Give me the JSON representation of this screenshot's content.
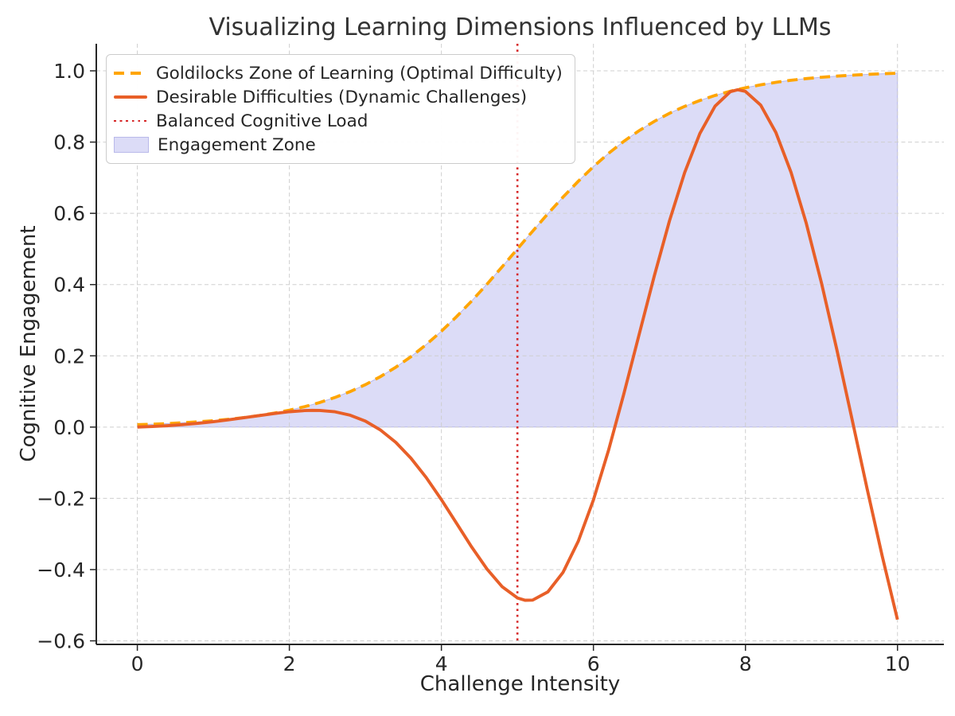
{
  "title": "Visualizing Learning Dimensions Influenced by LLMs",
  "legend": {
    "items": [
      {
        "label": "Goldilocks Zone of Learning (Optimal Difficulty)",
        "type": "dashed",
        "color": "#FFA500"
      },
      {
        "label": "Desirable Difficulties (Dynamic Challenges)",
        "type": "solid",
        "color": "#E85F28"
      },
      {
        "label": "Balanced Cognitive Load",
        "type": "dotted",
        "color": "#D62728"
      },
      {
        "label": "Engagement Zone",
        "type": "patch",
        "color": "#DCDCF7",
        "edge": "#B9B9EA"
      }
    ]
  },
  "colors": {
    "background": "#FFFFFF",
    "grid": "#CFCFCF",
    "spine": "#262626",
    "tick_text": "#262626",
    "title_text": "#333333"
  },
  "chart_data": {
    "type": "line",
    "title": "Visualizing Learning Dimensions Influenced by LLMs",
    "xlabel": "Challenge Intensity",
    "ylabel": "Cognitive Engagement",
    "xlim": [
      -0.54,
      10.61
    ],
    "ylim": [
      -0.61,
      1.076
    ],
    "xticks": [
      0,
      2,
      4,
      6,
      8,
      10
    ],
    "yticks": [
      -0.6,
      -0.4,
      -0.2,
      0.0,
      0.2,
      0.4,
      0.6,
      0.8,
      1.0
    ],
    "grid": true,
    "legend_position": "upper left",
    "x": [
      0,
      0.2,
      0.4,
      0.6,
      0.8,
      1.0,
      1.2,
      1.4,
      1.6,
      1.8,
      2.0,
      2.2,
      2.3,
      2.4,
      2.6,
      2.8,
      3.0,
      3.2,
      3.4,
      3.6,
      3.8,
      4.0,
      4.2,
      4.4,
      4.6,
      4.8,
      5.0,
      5.1,
      5.2,
      5.4,
      5.6,
      5.8,
      6.0,
      6.2,
      6.4,
      6.6,
      6.8,
      7.0,
      7.2,
      7.4,
      7.6,
      7.8,
      7.9,
      8.0,
      8.2,
      8.4,
      8.6,
      8.8,
      9.0,
      9.2,
      9.4,
      9.6,
      9.8,
      10.0
    ],
    "series": [
      {
        "name": "Goldilocks Zone of Learning (Optimal Difficulty)",
        "style": "dashed",
        "color": "#FFA500",
        "values": [
          0.0067,
          0.0082,
          0.0099,
          0.0121,
          0.0148,
          0.018,
          0.0219,
          0.0266,
          0.0323,
          0.0392,
          0.0474,
          0.0573,
          0.063,
          0.0691,
          0.0832,
          0.0997,
          0.1192,
          0.1419,
          0.168,
          0.1978,
          0.2315,
          0.2689,
          0.31,
          0.3543,
          0.4013,
          0.4502,
          0.5,
          0.525,
          0.5498,
          0.5987,
          0.6457,
          0.69,
          0.7311,
          0.7685,
          0.8022,
          0.832,
          0.8581,
          0.8808,
          0.9002,
          0.9168,
          0.9309,
          0.9427,
          0.9479,
          0.9526,
          0.9608,
          0.9677,
          0.9734,
          0.9781,
          0.982,
          0.9852,
          0.9879,
          0.99,
          0.9918,
          0.9933
        ]
      },
      {
        "name": "Desirable Difficulties (Dynamic Challenges)",
        "style": "solid",
        "color": "#E85F28",
        "values": [
          0.0,
          0.0016,
          0.0039,
          0.0069,
          0.0106,
          0.0151,
          0.0204,
          0.0262,
          0.0323,
          0.0381,
          0.0431,
          0.0463,
          0.047,
          0.0467,
          0.0429,
          0.0334,
          0.0168,
          -0.0083,
          -0.0429,
          -0.0875,
          -0.1416,
          -0.2035,
          -0.2702,
          -0.3372,
          -0.3988,
          -0.4484,
          -0.4795,
          -0.486,
          -0.4857,
          -0.4626,
          -0.4076,
          -0.3206,
          -0.2043,
          -0.0639,
          0.0935,
          0.2592,
          0.424,
          0.5787,
          0.7145,
          0.824,
          0.901,
          0.9413,
          0.9469,
          0.9423,
          0.9039,
          0.827,
          0.7149,
          0.5721,
          0.4047,
          0.2196,
          0.0245,
          -0.1726,
          -0.3625,
          -0.5404
        ]
      }
    ],
    "vline": {
      "name": "Balanced Cognitive Load",
      "x": 5,
      "style": "dotted",
      "color": "#D62728"
    },
    "fill_between": {
      "name": "Engagement Zone",
      "upper": "Goldilocks sigmoid curve",
      "lower": 0,
      "x_range": [
        0,
        10
      ],
      "color": "#DCDCF7",
      "edge": "#B9B9EA"
    }
  }
}
